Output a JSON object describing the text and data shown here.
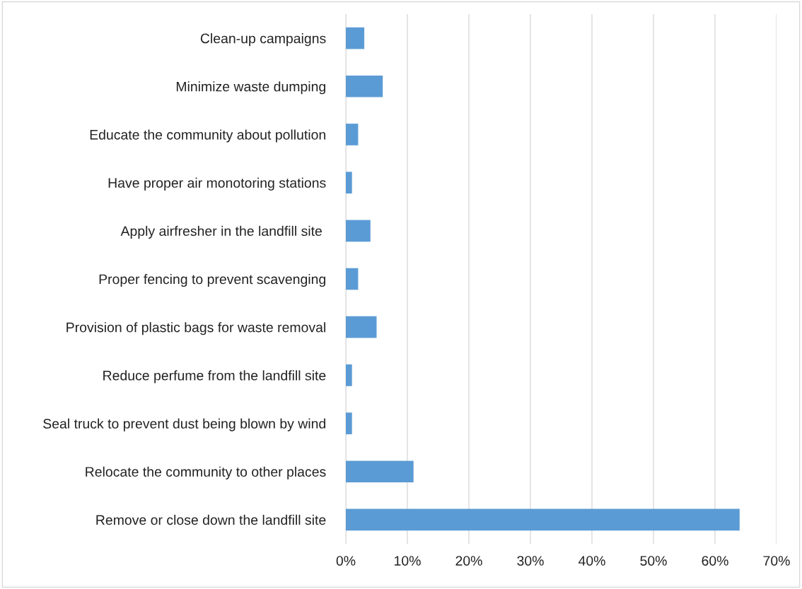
{
  "chart_data": {
    "type": "bar",
    "orientation": "horizontal",
    "color": "#5b9bd5",
    "categories": [
      "Clean-up campaigns",
      "Minimize waste dumping",
      "Educate the community about pollution",
      "Have proper air monotoring stations",
      "Apply airfresher in the landfill site ",
      "Proper fencing to prevent scavenging",
      "Provision of plastic bags for waste removal",
      "Reduce perfume from the landfill site",
      "Seal truck to prevent dust being blown by wind",
      "Relocate the community to other places",
      "Remove or close down the landfill site"
    ],
    "values": [
      3,
      6,
      2,
      1,
      4,
      2,
      5,
      1,
      1,
      11,
      64
    ],
    "xlim": [
      0,
      70
    ],
    "xticks": [
      {
        "value": 0,
        "label": "0%"
      },
      {
        "value": 10,
        "label": "10%"
      },
      {
        "value": 20,
        "label": "20%"
      },
      {
        "value": 30,
        "label": "30%"
      },
      {
        "value": 40,
        "label": "40%"
      },
      {
        "value": 50,
        "label": "50%"
      },
      {
        "value": 60,
        "label": "60%"
      },
      {
        "value": 70,
        "label": "70%"
      }
    ],
    "grid": "x",
    "legend": false
  }
}
